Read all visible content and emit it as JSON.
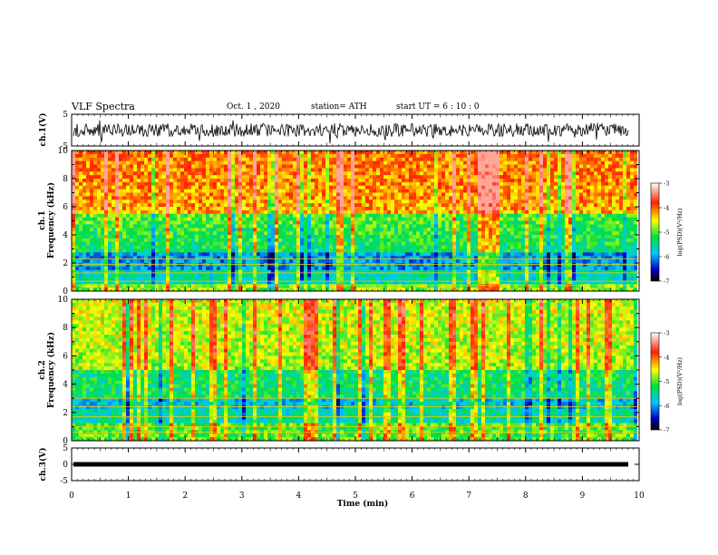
{
  "header": {
    "title": "VLF Spectra",
    "date": "Oct. 1 , 2020",
    "station": "station= ATH",
    "start": "start UT =  6 : 10 : 0"
  },
  "chart_data": [
    {
      "type": "line",
      "panel": "ch1-waveform",
      "ylabel": "ch.1(V)",
      "ylim": [
        -5,
        5
      ],
      "yticks": [
        "5",
        "-5"
      ],
      "xlim": [
        0,
        10
      ],
      "description_level_v": 0
    },
    {
      "type": "heatmap",
      "panel": "ch1-spectrogram",
      "ylabel": "ch.1\nFrequency (kHz)",
      "ylim": [
        0,
        10
      ],
      "yticks": [
        "0",
        "2",
        "4",
        "6",
        "8",
        "10"
      ],
      "xlim": [
        0,
        10
      ],
      "colorbar": {
        "label": "log(PSD)(V²/Hz)",
        "range": [
          -7,
          -3
        ],
        "ticks": [
          "-3",
          "-4",
          "-5",
          "-6",
          "-7"
        ]
      }
    },
    {
      "type": "heatmap",
      "panel": "ch2-spectrogram",
      "ylabel": "ch.2\nFrequency (kHz)",
      "ylim": [
        0,
        10
      ],
      "yticks": [
        "0",
        "2",
        "4",
        "6",
        "8",
        "10"
      ],
      "xlim": [
        0,
        10
      ],
      "colorbar": {
        "label": "log(PSD)(V²/Hz)",
        "range": [
          -7,
          -3
        ],
        "ticks": [
          "-3",
          "-4",
          "-5",
          "-6",
          "-7"
        ]
      }
    },
    {
      "type": "line",
      "panel": "ch3-waveform",
      "ylabel": "ch.3(V)",
      "ylim": [
        -5,
        5
      ],
      "yticks": [
        "5",
        "0",
        "-5"
      ],
      "xlim": [
        0,
        10
      ],
      "level_v": 0
    }
  ],
  "xaxis": {
    "label": "Time (min)",
    "ticks": [
      "0",
      "1",
      "2",
      "3",
      "4",
      "5",
      "6",
      "7",
      "8",
      "9",
      "10"
    ]
  },
  "labels": {
    "ch1_v": "ch.1(V)",
    "ch1_freq_a": "ch.1",
    "ch1_freq_b": "Frequency (kHz)",
    "ch2_freq_a": "ch.2",
    "ch2_freq_b": "Frequency (kHz)",
    "ch3_v": "ch.3(V)",
    "colorbar": "log(PSD)(V²/Hz)"
  }
}
